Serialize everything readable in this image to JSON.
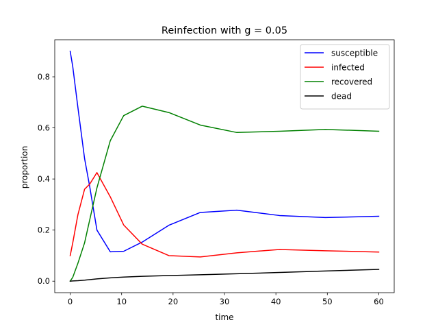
{
  "chart_data": {
    "type": "line",
    "title": "Reinfection with g = 0.05",
    "xlabel": "time",
    "ylabel": "proportion",
    "xlim": [
      -3,
      63
    ],
    "ylim": [
      -0.045,
      0.945
    ],
    "xticks": [
      0,
      10,
      20,
      30,
      40,
      50,
      60
    ],
    "yticks": [
      0.0,
      0.2,
      0.4,
      0.6,
      0.8
    ],
    "xtick_labels": [
      "0",
      "10",
      "20",
      "30",
      "40",
      "50",
      "60"
    ],
    "ytick_labels": [
      "0.0",
      "0.2",
      "0.4",
      "0.6",
      "0.8"
    ],
    "grid": false,
    "legend_position": "top-right",
    "series": [
      {
        "name": "susceptible",
        "color": "#0000ff",
        "x": [
          0,
          0.5,
          1.5,
          2.8,
          3.8,
          5.2,
          7.8,
          10.4,
          14.0,
          19.2,
          25.3,
          32.4,
          40.7,
          49.6,
          60.0
        ],
        "y": [
          0.9,
          0.84,
          0.68,
          0.48,
          0.37,
          0.2,
          0.115,
          0.117,
          0.153,
          0.219,
          0.269,
          0.278,
          0.257,
          0.249,
          0.254
        ]
      },
      {
        "name": "infected",
        "color": "#ff0000",
        "x": [
          0,
          0.5,
          1.5,
          2.8,
          3.8,
          5.2,
          7.8,
          10.4,
          14.0,
          19.2,
          25.3,
          32.4,
          40.7,
          49.6,
          60.0
        ],
        "y": [
          0.1,
          0.15,
          0.26,
          0.36,
          0.38,
          0.425,
          0.33,
          0.22,
          0.145,
          0.1,
          0.095,
          0.111,
          0.124,
          0.119,
          0.114
        ]
      },
      {
        "name": "recovered",
        "color": "#008000",
        "x": [
          0,
          0.5,
          1.5,
          2.8,
          3.8,
          5.2,
          7.8,
          10.4,
          14.0,
          19.2,
          25.3,
          32.4,
          40.7,
          49.6,
          60.0
        ],
        "y": [
          0.0,
          0.015,
          0.07,
          0.15,
          0.24,
          0.365,
          0.55,
          0.648,
          0.685,
          0.66,
          0.611,
          0.582,
          0.587,
          0.594,
          0.587
        ]
      },
      {
        "name": "dead",
        "color": "#000000",
        "x": [
          0,
          0.5,
          1.5,
          2.8,
          3.8,
          5.2,
          7.8,
          10.4,
          14.0,
          19.2,
          25.3,
          32.4,
          40.7,
          49.6,
          60.0
        ],
        "y": [
          0.0,
          0.001,
          0.002,
          0.004,
          0.006,
          0.009,
          0.013,
          0.016,
          0.019,
          0.022,
          0.025,
          0.029,
          0.034,
          0.04,
          0.046
        ]
      }
    ]
  }
}
